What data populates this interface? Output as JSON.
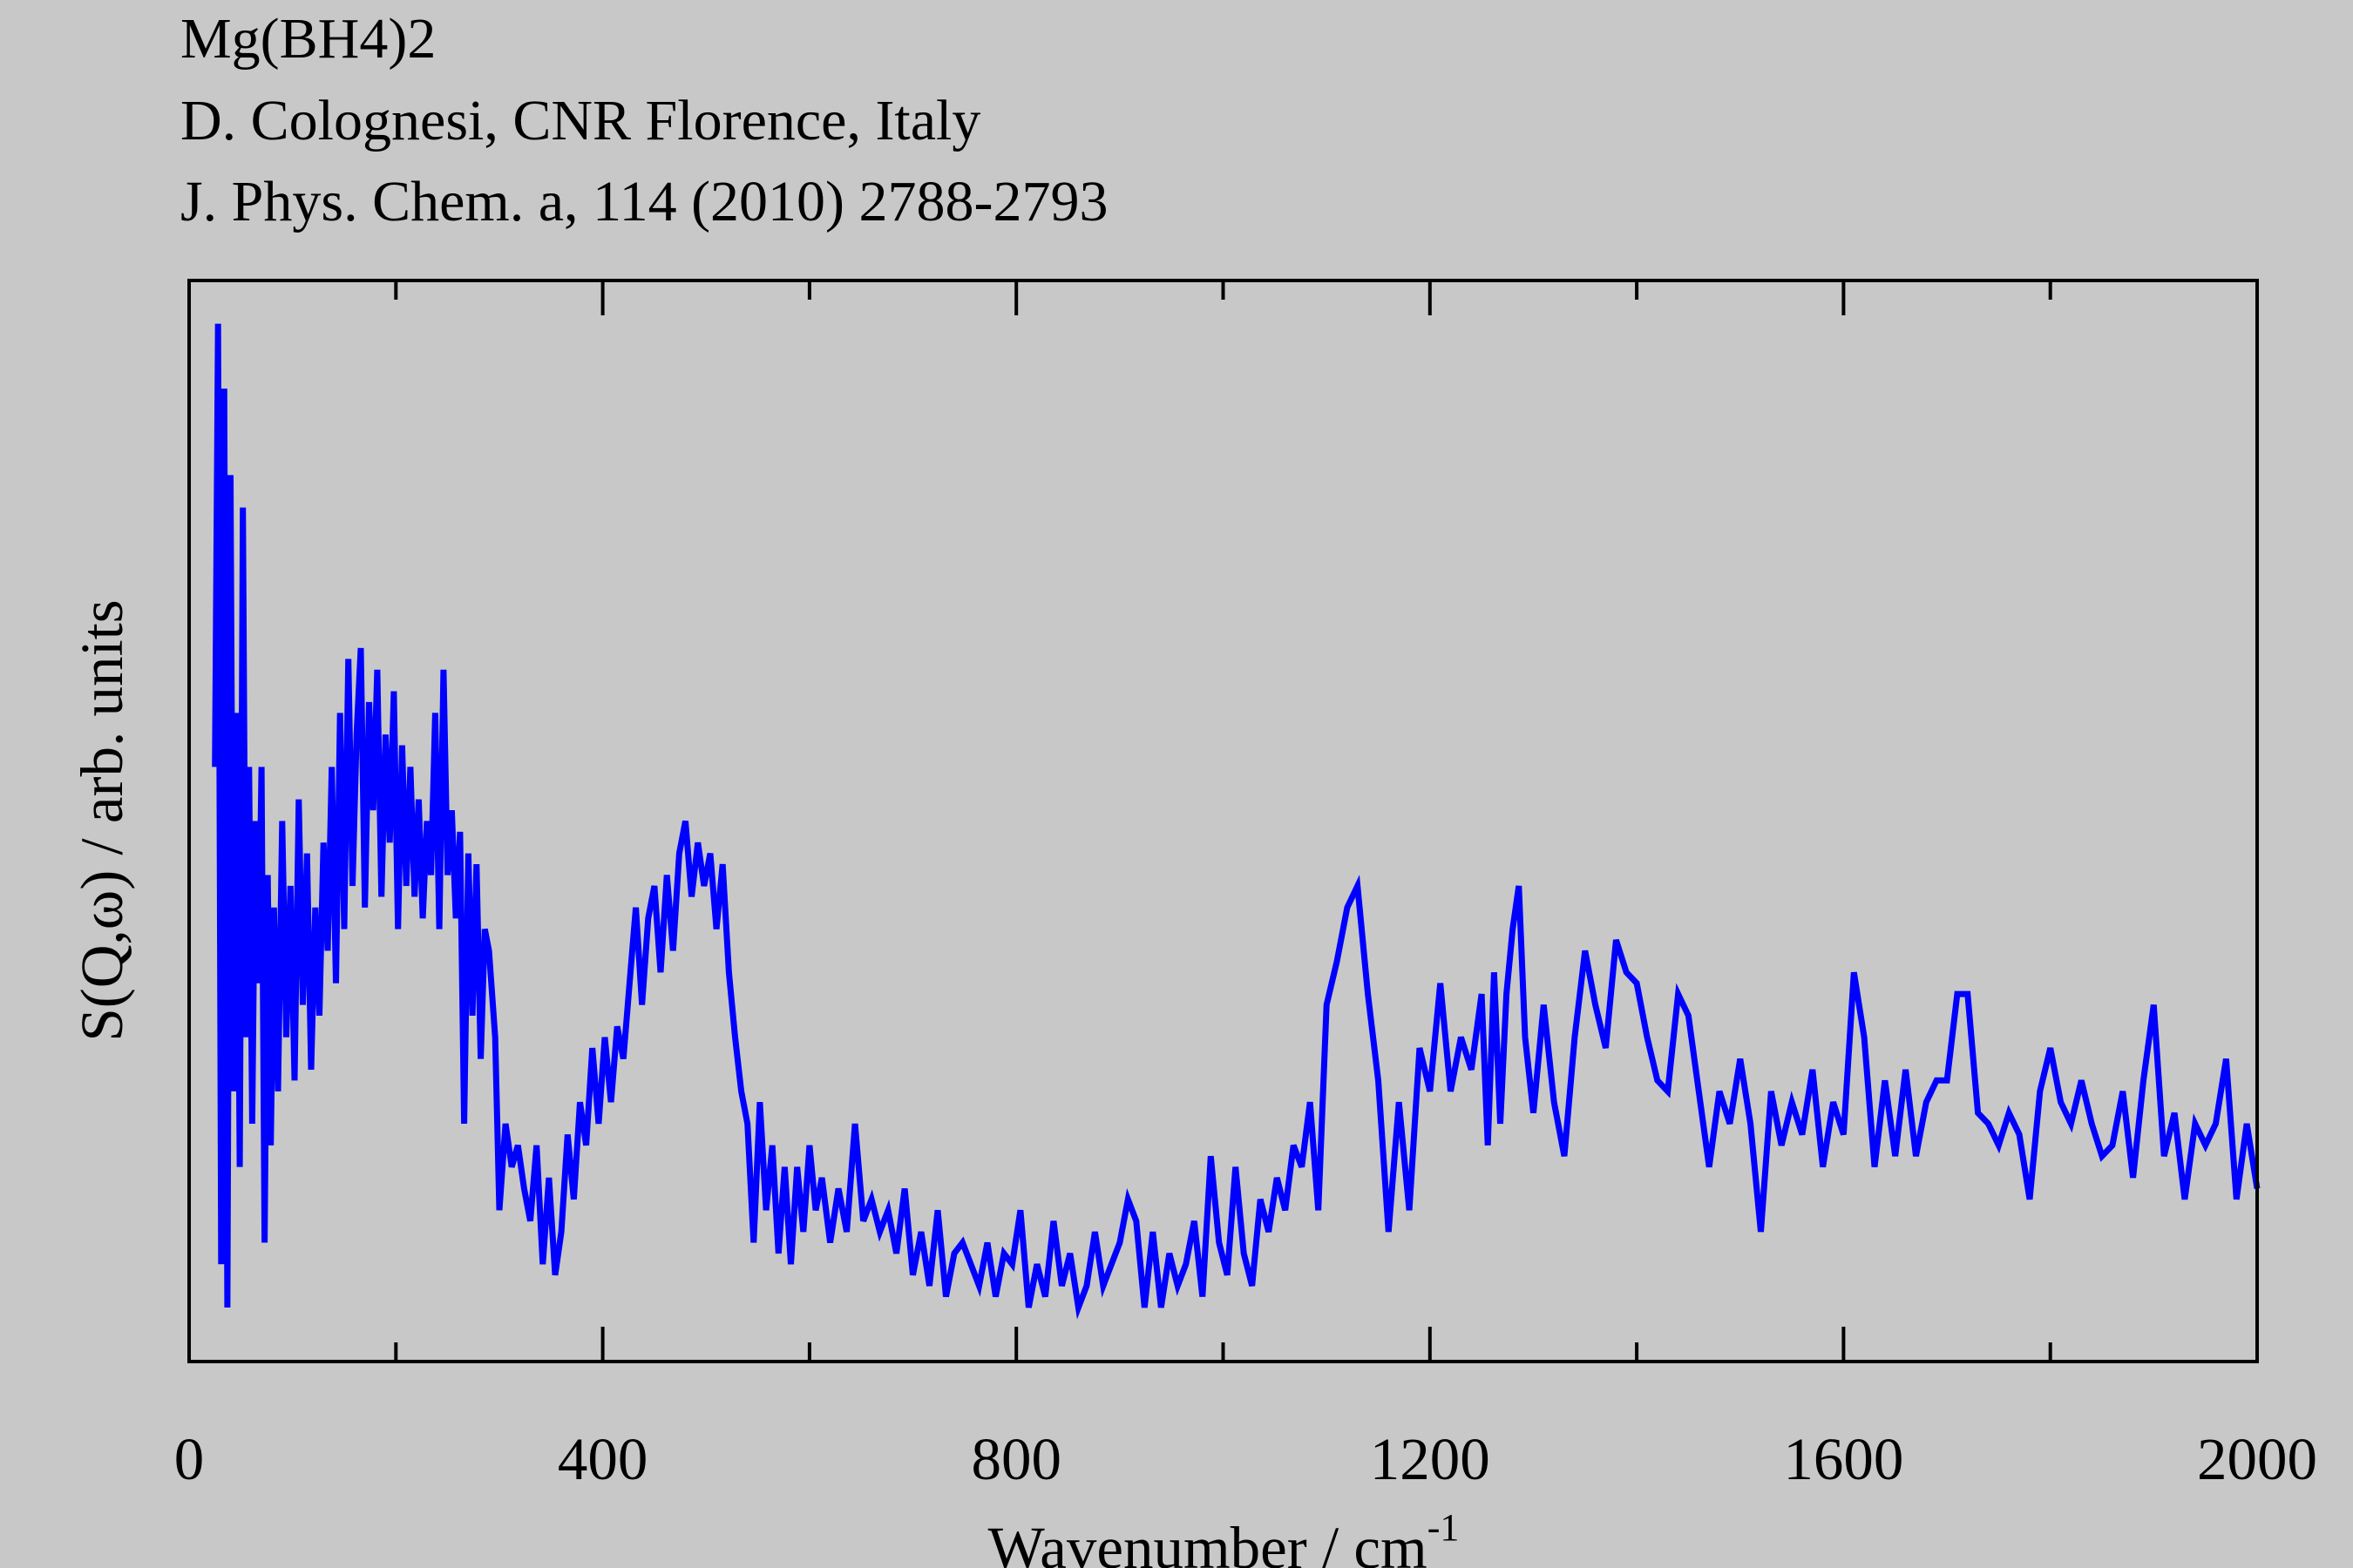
{
  "chart_data": {
    "type": "line",
    "title": "Mg(BH4)2",
    "subtitle": [
      "D. Colognesi, CNR Florence, Italy",
      "J. Phys. Chem. a, 114 (2010) 2788-2793"
    ],
    "xlabel": "Wavenumber / cm",
    "xlabel_superscript": "-1",
    "ylabel": "S(Q,ω) / arb. units",
    "xlim": [
      0,
      2000
    ],
    "xticks": [
      0,
      400,
      800,
      1200,
      1600,
      2000
    ],
    "xticks_minor": [
      200,
      600,
      1000,
      1400,
      1800
    ],
    "ylim": [
      0,
      1
    ],
    "series": [
      {
        "name": "Mg(BH4)2",
        "color": "#0000ff",
        "x": [
          25,
          28,
          31,
          34,
          37,
          40,
          43,
          46,
          49,
          52,
          55,
          58,
          61,
          64,
          67,
          70,
          73,
          76,
          79,
          82,
          86,
          90,
          94,
          98,
          102,
          106,
          110,
          114,
          118,
          122,
          126,
          130,
          134,
          138,
          142,
          146,
          150,
          154,
          158,
          162,
          166,
          170,
          174,
          178,
          182,
          186,
          190,
          194,
          198,
          202,
          206,
          210,
          214,
          218,
          222,
          226,
          230,
          234,
          238,
          242,
          246,
          250,
          254,
          258,
          262,
          266,
          270,
          274,
          278,
          282,
          286,
          290,
          296,
          300,
          306,
          312,
          318,
          324,
          330,
          336,
          342,
          348,
          354,
          360,
          366,
          372,
          378,
          384,
          390,
          396,
          402,
          408,
          414,
          420,
          426,
          432,
          438,
          444,
          450,
          456,
          462,
          468,
          474,
          480,
          486,
          492,
          498,
          504,
          510,
          516,
          522,
          528,
          534,
          540,
          546,
          552,
          558,
          564,
          570,
          576,
          582,
          588,
          594,
          600,
          606,
          612,
          620,
          628,
          636,
          644,
          652,
          660,
          668,
          676,
          684,
          692,
          700,
          708,
          716,
          724,
          732,
          740,
          748,
          756,
          764,
          772,
          780,
          788,
          796,
          804,
          812,
          820,
          828,
          836,
          844,
          852,
          860,
          868,
          876,
          884,
          892,
          900,
          908,
          916,
          924,
          932,
          940,
          948,
          956,
          964,
          972,
          980,
          988,
          996,
          1004,
          1012,
          1020,
          1028,
          1036,
          1044,
          1052,
          1060,
          1068,
          1076,
          1084,
          1092,
          1100,
          1110,
          1120,
          1130,
          1140,
          1150,
          1160,
          1170,
          1180,
          1190,
          1200,
          1210,
          1220,
          1230,
          1240,
          1250,
          1256,
          1262,
          1268,
          1274,
          1280,
          1286,
          1292,
          1300,
          1310,
          1320,
          1330,
          1340,
          1350,
          1360,
          1370,
          1380,
          1390,
          1400,
          1410,
          1420,
          1430,
          1440,
          1450,
          1460,
          1470,
          1480,
          1490,
          1500,
          1510,
          1520,
          1530,
          1540,
          1550,
          1560,
          1570,
          1580,
          1590,
          1600,
          1610,
          1620,
          1630,
          1640,
          1650,
          1660,
          1670,
          1680,
          1690,
          1700,
          1710,
          1720,
          1730,
          1740,
          1750,
          1760,
          1770,
          1780,
          1790,
          1800,
          1810,
          1820,
          1830,
          1840,
          1850,
          1860,
          1870,
          1880,
          1890,
          1900,
          1910,
          1920,
          1930,
          1940,
          1950,
          1960,
          1970,
          1980,
          1990,
          2000
        ],
        "values": [
          0.55,
          0.96,
          0.09,
          0.9,
          0.05,
          0.82,
          0.25,
          0.6,
          0.18,
          0.79,
          0.3,
          0.55,
          0.22,
          0.5,
          0.35,
          0.55,
          0.11,
          0.45,
          0.2,
          0.42,
          0.25,
          0.5,
          0.3,
          0.44,
          0.26,
          0.52,
          0.33,
          0.47,
          0.27,
          0.42,
          0.32,
          0.48,
          0.38,
          0.55,
          0.35,
          0.6,
          0.4,
          0.65,
          0.44,
          0.58,
          0.66,
          0.42,
          0.61,
          0.51,
          0.64,
          0.43,
          0.58,
          0.48,
          0.62,
          0.4,
          0.57,
          0.44,
          0.55,
          0.43,
          0.52,
          0.41,
          0.5,
          0.45,
          0.6,
          0.4,
          0.64,
          0.45,
          0.51,
          0.41,
          0.49,
          0.22,
          0.47,
          0.32,
          0.46,
          0.28,
          0.4,
          0.38,
          0.3,
          0.14,
          0.22,
          0.18,
          0.2,
          0.16,
          0.13,
          0.2,
          0.09,
          0.17,
          0.08,
          0.12,
          0.21,
          0.15,
          0.24,
          0.2,
          0.29,
          0.22,
          0.3,
          0.24,
          0.31,
          0.28,
          0.35,
          0.42,
          0.33,
          0.41,
          0.44,
          0.36,
          0.45,
          0.38,
          0.47,
          0.5,
          0.43,
          0.48,
          0.44,
          0.47,
          0.4,
          0.46,
          0.36,
          0.3,
          0.25,
          0.22,
          0.11,
          0.24,
          0.14,
          0.2,
          0.1,
          0.18,
          0.09,
          0.18,
          0.12,
          0.2,
          0.14,
          0.17,
          0.11,
          0.16,
          0.12,
          0.22,
          0.13,
          0.15,
          0.12,
          0.14,
          0.1,
          0.16,
          0.08,
          0.12,
          0.07,
          0.14,
          0.06,
          0.1,
          0.11,
          0.09,
          0.07,
          0.11,
          0.06,
          0.1,
          0.09,
          0.14,
          0.05,
          0.09,
          0.06,
          0.13,
          0.07,
          0.1,
          0.05,
          0.07,
          0.12,
          0.07,
          0.09,
          0.11,
          0.15,
          0.13,
          0.05,
          0.12,
          0.05,
          0.1,
          0.07,
          0.09,
          0.13,
          0.06,
          0.19,
          0.11,
          0.08,
          0.18,
          0.1,
          0.07,
          0.15,
          0.12,
          0.17,
          0.14,
          0.2,
          0.18,
          0.24,
          0.14,
          0.33,
          0.37,
          0.42,
          0.44,
          0.34,
          0.26,
          0.12,
          0.24,
          0.14,
          0.29,
          0.25,
          0.35,
          0.25,
          0.3,
          0.27,
          0.34,
          0.2,
          0.36,
          0.22,
          0.34,
          0.4,
          0.44,
          0.3,
          0.23,
          0.33,
          0.24,
          0.19,
          0.3,
          0.38,
          0.33,
          0.29,
          0.39,
          0.36,
          0.35,
          0.3,
          0.26,
          0.25,
          0.34,
          0.32,
          0.25,
          0.18,
          0.25,
          0.22,
          0.28,
          0.22,
          0.12,
          0.25,
          0.2,
          0.24,
          0.21,
          0.27,
          0.18,
          0.24,
          0.21,
          0.36,
          0.3,
          0.18,
          0.26,
          0.19,
          0.27,
          0.19,
          0.24,
          0.26,
          0.26,
          0.34,
          0.34,
          0.23,
          0.22,
          0.2,
          0.23,
          0.21,
          0.15,
          0.25,
          0.29,
          0.24,
          0.22,
          0.26,
          0.22,
          0.19,
          0.2,
          0.25,
          0.17,
          0.26,
          0.33,
          0.19,
          0.23,
          0.15,
          0.22,
          0.2,
          0.22,
          0.28,
          0.15,
          0.22,
          0.16
        ]
      }
    ]
  }
}
